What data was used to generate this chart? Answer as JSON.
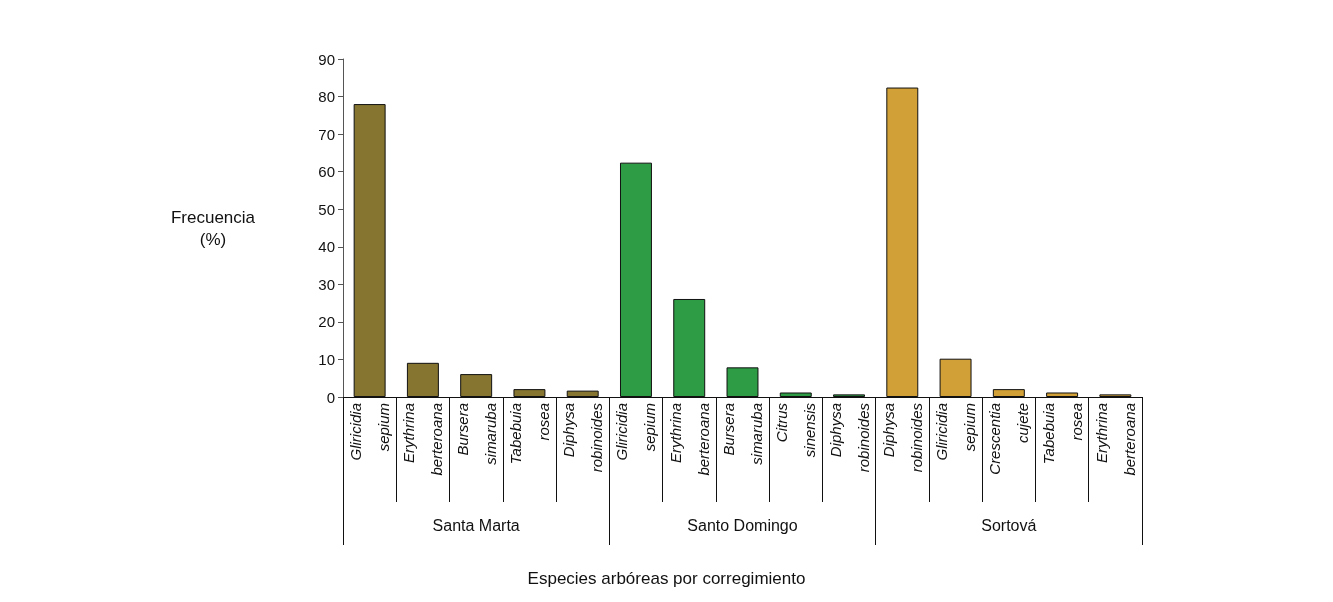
{
  "chart_data": {
    "type": "bar",
    "ylabel": "Frecuencia\n(%)",
    "categories": [
      "Gliricidia sepium",
      "Erythrina berteroana",
      "Bursera simaruba",
      "Tabebuia rosea",
      "Diphysa robinoides",
      "Gliricidia sepium",
      "Erythrina berteroana",
      "Bursera simaruba",
      "Citrus sinensis",
      "Diphysa robinoides",
      "Diphysa robinoides",
      "Gliricidia sepium",
      "Crescentia cujete",
      "Tabebuia rosea",
      "Erythrina berteroana"
    ],
    "series": [
      {
        "color": "#857530",
        "values": [
          78,
          9.1,
          6.1,
          2.1,
          1.7,
          null,
          null,
          null,
          null,
          null,
          null,
          null,
          null,
          null,
          null
        ]
      },
      {
        "color": "#2e9b45",
        "values": [
          null,
          null,
          null,
          null,
          null,
          62.4,
          26.1,
          7.9,
          1.2,
          0.7,
          null,
          null,
          null,
          null,
          null
        ]
      },
      {
        "color": "#d1a036",
        "values": [
          null,
          null,
          null,
          null,
          null,
          null,
          null,
          null,
          null,
          null,
          82.4,
          10.2,
          2.1,
          1.2,
          0.7
        ]
      }
    ],
    "annotations": [
      "Santa Marta",
      "Santo Domingo",
      "Sortová",
      "Especies arbóreas por corregimiento"
    ],
    "ylim": [
      0,
      90
    ],
    "yticks": [
      0,
      10,
      20,
      30,
      40,
      50,
      60,
      70,
      80,
      90
    ],
    "grid": false
  }
}
